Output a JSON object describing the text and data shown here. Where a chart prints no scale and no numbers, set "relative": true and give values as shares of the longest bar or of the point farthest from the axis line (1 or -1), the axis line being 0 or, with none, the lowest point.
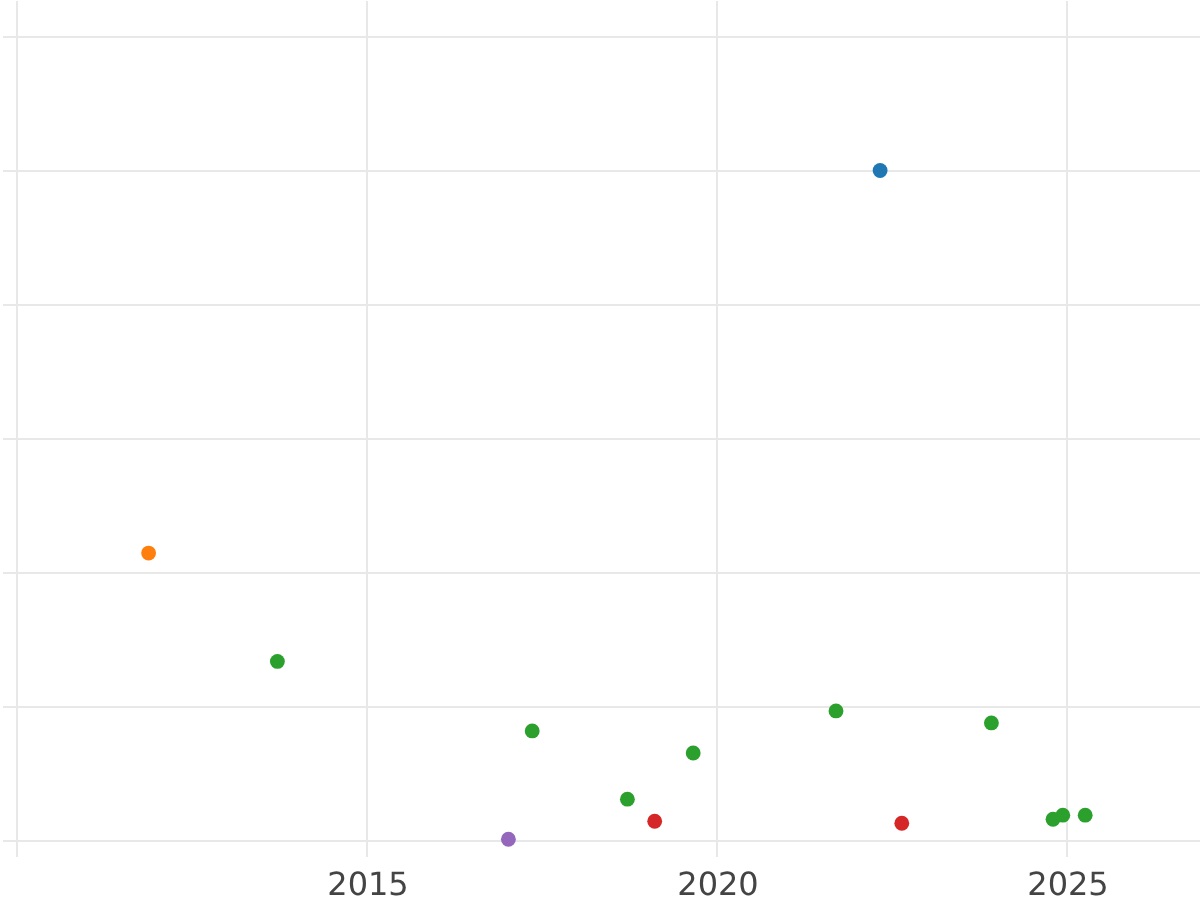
{
  "chart_data": {
    "type": "scatter",
    "relative": true,
    "grid": true,
    "marker": "circle",
    "xlim": [
      2009.9,
      2026.9
    ],
    "xticks": [
      {
        "value": 2010,
        "label": null
      },
      2015,
      2020,
      2025
    ],
    "series": [
      {
        "color": "#1f77b4",
        "x": [
          2022.33
        ],
        "values": [
          1
        ]
      },
      {
        "color": "#ff7f0e",
        "x": [
          2011.88
        ],
        "values": [
          0.428
        ]
      },
      {
        "color": "#2ca02c",
        "x": [
          2013.72,
          2017.36,
          2018.72,
          2019.66,
          2021.7,
          2023.92,
          2024.8,
          2024.94,
          2025.26
        ],
        "values": [
          0.266,
          0.162,
          0.06,
          0.129,
          0.192,
          0.174,
          0.03,
          0.036,
          0.036
        ]
      },
      {
        "color": "#d62728",
        "x": [
          2019.11,
          2022.64
        ],
        "values": [
          0.027,
          0.024
        ]
      },
      {
        "color": "#9467bd",
        "x": [
          2017.02
        ],
        "values": [
          0
        ]
      }
    ]
  }
}
